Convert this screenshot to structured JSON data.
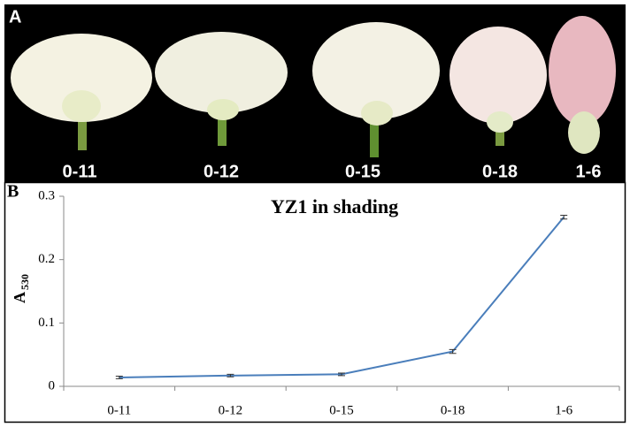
{
  "panel_a": {
    "label": "A",
    "photo_labels": [
      "0-11",
      "0-12",
      "0-15",
      "0-18",
      "1-6"
    ]
  },
  "chart_data": {
    "type": "line",
    "panel_label": "B",
    "title": "YZ1 in shading",
    "y_label": "A",
    "y_label_subscript": "530",
    "categories": [
      "0-11",
      "0-12",
      "0-15",
      "0-18",
      "1-6"
    ],
    "values": [
      0.014,
      0.017,
      0.019,
      0.055,
      0.267
    ],
    "errors": [
      0.002,
      0.002,
      0.002,
      0.003,
      0.003
    ],
    "color": "#4a7ebb",
    "ylim": [
      0,
      0.3
    ],
    "yticks": [
      0,
      0.1,
      0.2,
      0.3
    ],
    "grid": false
  }
}
